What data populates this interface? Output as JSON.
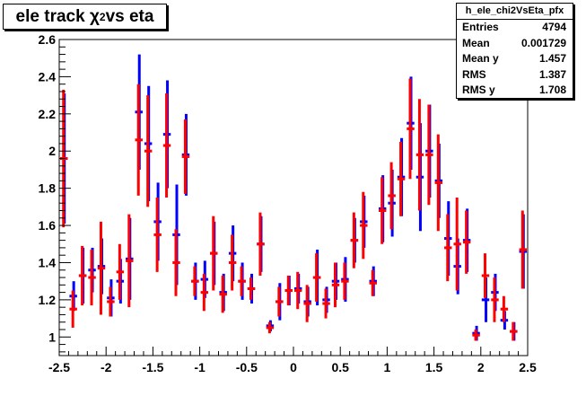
{
  "chart_data": {
    "type": "scatter",
    "title_prefix": "ele track χ",
    "title_sup": "2",
    "title_suffix": " vs eta",
    "xlim": [
      -2.5,
      2.5
    ],
    "ylim": [
      0.9,
      2.6
    ],
    "xticks": [
      "-2.5",
      "-2",
      "-1.5",
      "-1",
      "-0.5",
      "0",
      "0.5",
      "1",
      "1.5",
      "2",
      "2.5"
    ],
    "yticks": [
      "1",
      "1.2",
      "1.4",
      "1.6",
      "1.8",
      "2",
      "2.2",
      "2.4",
      "2.6"
    ],
    "grid": false,
    "stats": {
      "name": "h_ele_chi2VsEta_pfx",
      "rows": [
        {
          "label": "Entries",
          "value": "4794"
        },
        {
          "label": "Mean",
          "value": "0.001729"
        },
        {
          "label": "Mean y",
          "value": "1.457"
        },
        {
          "label": "RMS",
          "value": "1.387"
        },
        {
          "label": "RMS y",
          "value": "1.708"
        }
      ]
    },
    "series": [
      {
        "color": "#0000ff",
        "points": [
          [
            -2.45,
            1.96,
            0.35
          ],
          [
            -2.35,
            1.22,
            0.08
          ],
          [
            -2.25,
            1.33,
            0.15
          ],
          [
            -2.15,
            1.36,
            0.12
          ],
          [
            -2.05,
            1.38,
            0.15
          ],
          [
            -1.95,
            1.21,
            0.1
          ],
          [
            -1.85,
            1.3,
            0.12
          ],
          [
            -1.75,
            1.42,
            0.22
          ],
          [
            -1.65,
            2.21,
            0.31
          ],
          [
            -1.55,
            2.04,
            0.31
          ],
          [
            -1.45,
            1.62,
            0.21
          ],
          [
            -1.35,
            2.09,
            0.29
          ],
          [
            -1.25,
            1.55,
            0.27
          ],
          [
            -1.15,
            1.98,
            0.22
          ],
          [
            -1.05,
            1.3,
            0.1
          ],
          [
            -0.95,
            1.31,
            0.1
          ],
          [
            -0.85,
            1.45,
            0.17
          ],
          [
            -0.75,
            1.24,
            0.1
          ],
          [
            -0.65,
            1.45,
            0.15
          ],
          [
            -0.55,
            1.3,
            0.1
          ],
          [
            -0.45,
            1.26,
            0.08
          ],
          [
            -0.35,
            1.5,
            0.15
          ],
          [
            -0.25,
            1.06,
            0.03
          ],
          [
            -0.15,
            1.19,
            0.1
          ],
          [
            -0.05,
            1.25,
            0.08
          ],
          [
            0.05,
            1.26,
            0.08
          ],
          [
            0.15,
            1.19,
            0.08
          ],
          [
            0.25,
            1.32,
            0.15
          ],
          [
            0.35,
            1.2,
            0.07
          ],
          [
            0.45,
            1.3,
            0.1
          ],
          [
            0.55,
            1.31,
            0.12
          ],
          [
            0.65,
            1.52,
            0.12
          ],
          [
            0.75,
            1.62,
            0.14
          ],
          [
            0.85,
            1.3,
            0.08
          ],
          [
            0.95,
            1.69,
            0.18
          ],
          [
            1.05,
            1.72,
            0.18
          ],
          [
            1.15,
            1.86,
            0.21
          ],
          [
            1.25,
            2.15,
            0.25
          ],
          [
            1.35,
            1.86,
            0.29
          ],
          [
            1.45,
            2.0,
            0.25
          ],
          [
            1.55,
            1.84,
            0.2
          ],
          [
            1.65,
            1.53,
            0.2
          ],
          [
            1.75,
            1.38,
            0.15
          ],
          [
            1.85,
            1.52,
            0.17
          ],
          [
            1.95,
            1.02,
            0.04
          ],
          [
            2.05,
            1.2,
            0.12
          ],
          [
            2.15,
            1.24,
            0.1
          ],
          [
            2.25,
            1.09,
            0.05
          ],
          [
            2.35,
            1.03,
            0.05
          ],
          [
            2.45,
            1.46,
            0.2
          ]
        ]
      },
      {
        "color": "#ff0000",
        "points": [
          [
            -2.45,
            1.96,
            0.37
          ],
          [
            -2.35,
            1.15,
            0.1
          ],
          [
            -2.25,
            1.33,
            0.16
          ],
          [
            -2.15,
            1.32,
            0.15
          ],
          [
            -2.05,
            1.37,
            0.25
          ],
          [
            -1.95,
            1.19,
            0.08
          ],
          [
            -1.85,
            1.35,
            0.15
          ],
          [
            -1.75,
            1.41,
            0.25
          ],
          [
            -1.65,
            2.06,
            0.3
          ],
          [
            -1.55,
            2.0,
            0.3
          ],
          [
            -1.45,
            1.55,
            0.2
          ],
          [
            -1.35,
            2.03,
            0.28
          ],
          [
            -1.25,
            1.4,
            0.18
          ],
          [
            -1.15,
            1.97,
            0.2
          ],
          [
            -1.05,
            1.3,
            0.08
          ],
          [
            -0.95,
            1.24,
            0.1
          ],
          [
            -0.85,
            1.45,
            0.2
          ],
          [
            -0.75,
            1.23,
            0.1
          ],
          [
            -0.65,
            1.4,
            0.15
          ],
          [
            -0.55,
            1.3,
            0.08
          ],
          [
            -0.45,
            1.26,
            0.06
          ],
          [
            -0.35,
            1.5,
            0.17
          ],
          [
            -0.25,
            1.05,
            0.03
          ],
          [
            -0.15,
            1.19,
            0.08
          ],
          [
            -0.05,
            1.25,
            0.08
          ],
          [
            0.05,
            1.25,
            0.1
          ],
          [
            0.15,
            1.18,
            0.1
          ],
          [
            0.25,
            1.32,
            0.13
          ],
          [
            0.35,
            1.18,
            0.08
          ],
          [
            0.45,
            1.28,
            0.12
          ],
          [
            0.55,
            1.3,
            0.1
          ],
          [
            0.65,
            1.52,
            0.15
          ],
          [
            0.75,
            1.6,
            0.18
          ],
          [
            0.85,
            1.29,
            0.07
          ],
          [
            0.95,
            1.68,
            0.18
          ],
          [
            1.05,
            1.76,
            0.18
          ],
          [
            1.15,
            1.85,
            0.2
          ],
          [
            1.25,
            2.12,
            0.27
          ],
          [
            1.35,
            1.98,
            0.3
          ],
          [
            1.45,
            1.98,
            0.27
          ],
          [
            1.55,
            1.83,
            0.26
          ],
          [
            1.65,
            1.48,
            0.18
          ],
          [
            1.75,
            1.5,
            0.25
          ],
          [
            1.85,
            1.51,
            0.17
          ],
          [
            1.95,
            1.01,
            0.03
          ],
          [
            2.05,
            1.33,
            0.12
          ],
          [
            2.15,
            1.2,
            0.12
          ],
          [
            2.25,
            1.15,
            0.07
          ],
          [
            2.35,
            1.03,
            0.05
          ],
          [
            2.45,
            1.47,
            0.21
          ]
        ]
      }
    ]
  }
}
